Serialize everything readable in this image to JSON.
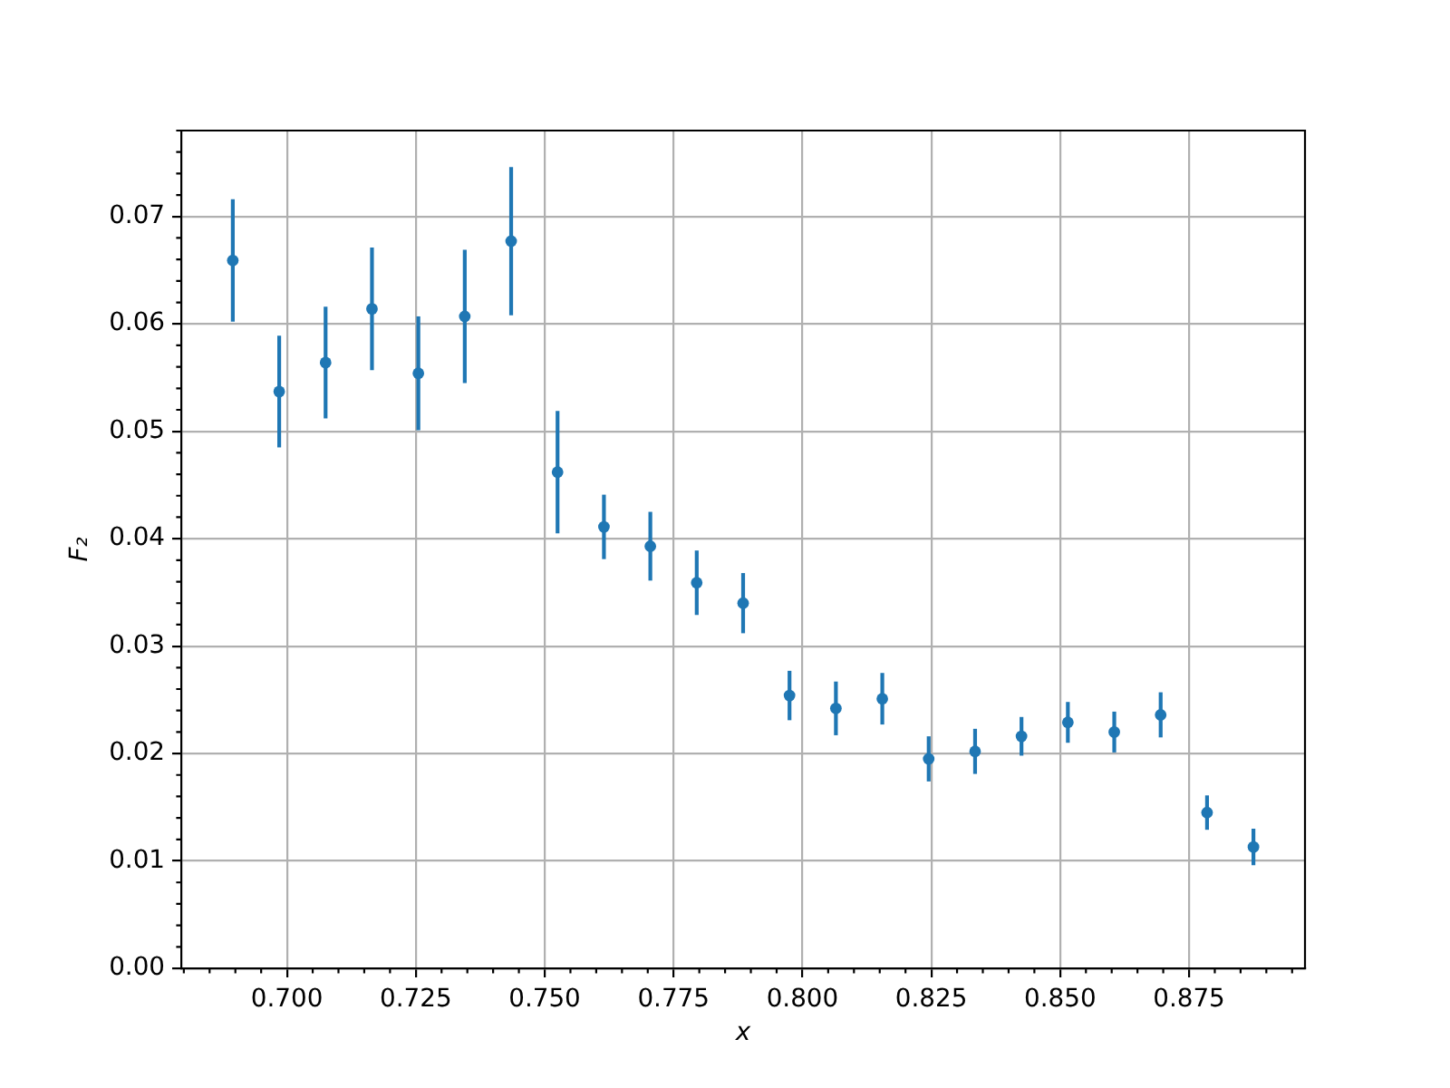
{
  "chart_data": {
    "type": "scatter",
    "xlabel": "x",
    "ylabel": "F₂",
    "x": [
      0.6895,
      0.6985,
      0.7075,
      0.7165,
      0.7255,
      0.7345,
      0.7435,
      0.7525,
      0.7615,
      0.7705,
      0.7795,
      0.7885,
      0.7975,
      0.8065,
      0.8155,
      0.8245,
      0.8335,
      0.8425,
      0.8515,
      0.8605,
      0.8695,
      0.8785,
      0.8875
    ],
    "series": [
      {
        "color": "#1f77b4",
        "values": [
          0.0659,
          0.0537,
          0.0564,
          0.0614,
          0.0554,
          0.0607,
          0.0677,
          0.0462,
          0.0411,
          0.0393,
          0.0359,
          0.034,
          0.0254,
          0.0242,
          0.0251,
          0.0195,
          0.0202,
          0.0216,
          0.0229,
          0.022,
          0.0236,
          0.0145,
          0.0113
        ],
        "errors": [
          0.0057,
          0.0052,
          0.0052,
          0.0057,
          0.0053,
          0.0062,
          0.0069,
          0.0057,
          0.003,
          0.0032,
          0.003,
          0.0028,
          0.0023,
          0.0025,
          0.0024,
          0.0021,
          0.0021,
          0.0018,
          0.0019,
          0.0019,
          0.0021,
          0.0016,
          0.0017
        ]
      }
    ],
    "xlim": [
      0.6795,
      0.8975
    ],
    "xticks": [
      {
        "value": 0.68,
        "label": null
      },
      {
        "value": 0.685,
        "label": null
      },
      {
        "value": 0.69,
        "label": null
      },
      {
        "value": 0.695,
        "label": null
      },
      {
        "value": 0.7,
        "label": "0.700"
      },
      {
        "value": 0.705,
        "label": null
      },
      {
        "value": 0.71,
        "label": null
      },
      {
        "value": 0.715,
        "label": null
      },
      {
        "value": 0.72,
        "label": null
      },
      0.725,
      {
        "value": 0.73,
        "label": null
      },
      {
        "value": 0.735,
        "label": null
      },
      {
        "value": 0.74,
        "label": null
      },
      {
        "value": 0.745,
        "label": null
      },
      {
        "value": 0.75,
        "label": "0.750"
      },
      {
        "value": 0.755,
        "label": null
      },
      {
        "value": 0.76,
        "label": null
      },
      {
        "value": 0.765,
        "label": null
      },
      {
        "value": 0.77,
        "label": null
      },
      0.775,
      {
        "value": 0.78,
        "label": null
      },
      {
        "value": 0.785,
        "label": null
      },
      {
        "value": 0.79,
        "label": null
      },
      {
        "value": 0.795,
        "label": null
      },
      {
        "value": 0.8,
        "label": "0.800"
      },
      {
        "value": 0.805,
        "label": null
      },
      {
        "value": 0.81,
        "label": null
      },
      {
        "value": 0.815,
        "label": null
      },
      {
        "value": 0.82,
        "label": null
      },
      0.825,
      {
        "value": 0.83,
        "label": null
      },
      {
        "value": 0.835,
        "label": null
      },
      {
        "value": 0.84,
        "label": null
      },
      {
        "value": 0.845,
        "label": null
      },
      {
        "value": 0.85,
        "label": "0.850"
      },
      {
        "value": 0.855,
        "label": null
      },
      {
        "value": 0.86,
        "label": null
      },
      {
        "value": 0.865,
        "label": null
      },
      {
        "value": 0.87,
        "label": null
      },
      0.875,
      {
        "value": 0.88,
        "label": null
      },
      {
        "value": 0.885,
        "label": null
      },
      {
        "value": 0.89,
        "label": null
      },
      {
        "value": 0.895,
        "label": null
      }
    ],
    "ylim": [
      0,
      0.078
    ],
    "yticks": [
      {
        "value": 0,
        "label": "0.00"
      },
      {
        "value": 0.002,
        "label": null
      },
      {
        "value": 0.004,
        "label": null
      },
      {
        "value": 0.006,
        "label": null
      },
      {
        "value": 0.008,
        "label": null
      },
      0.01,
      {
        "value": 0.012,
        "label": null
      },
      {
        "value": 0.014,
        "label": null
      },
      {
        "value": 0.016,
        "label": null
      },
      {
        "value": 0.018,
        "label": null
      },
      0.02,
      {
        "value": 0.022,
        "label": null
      },
      {
        "value": 0.024,
        "label": null
      },
      {
        "value": 0.026,
        "label": null
      },
      {
        "value": 0.028,
        "label": null
      },
      0.03,
      {
        "value": 0.032,
        "label": null
      },
      {
        "value": 0.034,
        "label": null
      },
      {
        "value": 0.036,
        "label": null
      },
      {
        "value": 0.038,
        "label": null
      },
      0.04,
      {
        "value": 0.042,
        "label": null
      },
      {
        "value": 0.044,
        "label": null
      },
      {
        "value": 0.046,
        "label": null
      },
      {
        "value": 0.048,
        "label": null
      },
      0.05,
      {
        "value": 0.052,
        "label": null
      },
      {
        "value": 0.054,
        "label": null
      },
      {
        "value": 0.056,
        "label": null
      },
      {
        "value": 0.058,
        "label": null
      },
      0.06,
      {
        "value": 0.062,
        "label": null
      },
      {
        "value": 0.064,
        "label": null
      },
      {
        "value": 0.066,
        "label": null
      },
      {
        "value": 0.068,
        "label": null
      },
      0.07,
      {
        "value": 0.072,
        "label": null
      },
      {
        "value": 0.074,
        "label": null
      },
      {
        "value": 0.076,
        "label": null
      },
      {
        "value": 0.078,
        "label": null
      }
    ],
    "grid": true,
    "marker": "circle"
  }
}
